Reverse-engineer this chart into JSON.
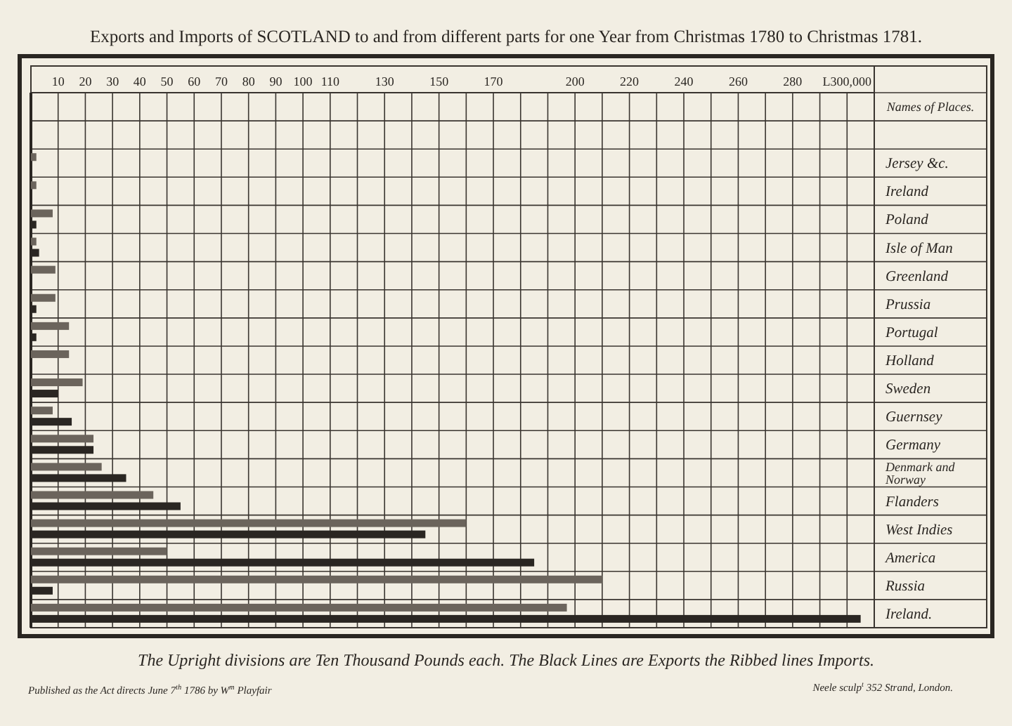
{
  "chart_data": {
    "type": "bar",
    "orientation": "horizontal",
    "title": "Exports and Imports of SCOTLAND to and from different parts for one Year from Christmas 1780 to Christmas 1781.",
    "ylabel": "Names of Places.",
    "categories": [
      null,
      null,
      "Jersey &c.",
      "Ireland",
      "Poland",
      "Isle of Man",
      "Greenland",
      "Prussia",
      "Portugal",
      "Holland",
      "Sweden",
      "Guernsey",
      "Germany",
      "Denmark and Norway",
      "Flanders",
      "West Indies",
      "America",
      "Russia",
      "Ireland."
    ],
    "series": [
      {
        "color": "#6b645c",
        "values": [
          null,
          null,
          2,
          2,
          8,
          2,
          9,
          9,
          14,
          14,
          19,
          8,
          23,
          26,
          45,
          160,
          50,
          210,
          197
        ]
      },
      {
        "color": "#2a2622",
        "values": [
          null,
          null,
          null,
          null,
          2,
          3,
          null,
          2,
          2,
          null,
          10,
          15,
          23,
          35,
          55,
          145,
          185,
          8,
          305
        ]
      }
    ],
    "xlim": [
      0,
      310
    ],
    "xticks": [
      10,
      20,
      30,
      40,
      50,
      60,
      70,
      80,
      90,
      100,
      110,
      {
        "value": 120,
        "label": null
      },
      130,
      {
        "value": 140,
        "label": null
      },
      150,
      {
        "value": 160,
        "label": null
      },
      170,
      {
        "value": 180,
        "label": null
      },
      {
        "value": 190,
        "label": null
      },
      200,
      {
        "value": 210,
        "label": null
      },
      220,
      {
        "value": 230,
        "label": null
      },
      240,
      {
        "value": 250,
        "label": null
      },
      260,
      {
        "value": 270,
        "label": null
      },
      280,
      {
        "value": 290,
        "label": null
      },
      {
        "value": 300,
        "label": "L300,000"
      }
    ],
    "grid": true,
    "annotations": [
      "The Upright divisions are Ten Thousand Pounds each. The Black Lines are Exports the Ribbed lines Imports.",
      "Published as the Act directs June 7$^{th}$ 1786 by W$^{m}$ Playfair",
      "Neele sculp$^{t}$ 352 Strand, London."
    ]
  }
}
